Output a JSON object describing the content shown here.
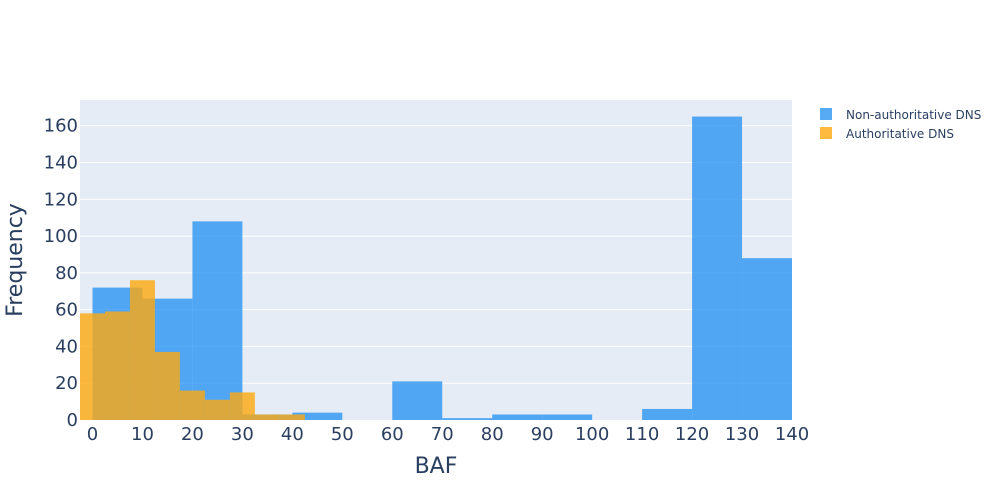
{
  "chart_data": {
    "type": "bar",
    "barmode": "overlay",
    "xlabel": "BAF",
    "ylabel": "Frequency",
    "xlim": [
      -2.5,
      140
    ],
    "ylim": [
      0,
      174
    ],
    "x_ticks": [
      0,
      10,
      20,
      30,
      40,
      50,
      60,
      70,
      80,
      90,
      100,
      110,
      120,
      130,
      140
    ],
    "y_ticks": [
      0,
      20,
      40,
      60,
      80,
      100,
      120,
      140,
      160
    ],
    "grid": true,
    "legend_position": "top-right",
    "series": [
      {
        "name": "Non-authoritative DNS",
        "color": "#1f8ff2",
        "opacity": 0.75,
        "bins": [
          {
            "x0": 0,
            "x1": 10,
            "value": 72
          },
          {
            "x0": 10,
            "x1": 20,
            "value": 66
          },
          {
            "x0": 20,
            "x1": 30,
            "value": 108
          },
          {
            "x0": 30,
            "x1": 40,
            "value": 3
          },
          {
            "x0": 40,
            "x1": 50,
            "value": 4
          },
          {
            "x0": 50,
            "x1": 60,
            "value": 0
          },
          {
            "x0": 60,
            "x1": 70,
            "value": 21
          },
          {
            "x0": 70,
            "x1": 80,
            "value": 1
          },
          {
            "x0": 80,
            "x1": 90,
            "value": 3
          },
          {
            "x0": 90,
            "x1": 100,
            "value": 3
          },
          {
            "x0": 100,
            "x1": 110,
            "value": 0
          },
          {
            "x0": 110,
            "x1": 120,
            "value": 6
          },
          {
            "x0": 120,
            "x1": 130,
            "value": 165
          },
          {
            "x0": 130,
            "x1": 140,
            "value": 88
          }
        ]
      },
      {
        "name": "Authoritative DNS",
        "color": "#fca90e",
        "opacity": 0.8,
        "bins": [
          {
            "x0": -2.5,
            "x1": 2.5,
            "value": 58
          },
          {
            "x0": 2.5,
            "x1": 7.5,
            "value": 59
          },
          {
            "x0": 7.5,
            "x1": 12.5,
            "value": 76
          },
          {
            "x0": 12.5,
            "x1": 17.5,
            "value": 37
          },
          {
            "x0": 17.5,
            "x1": 22.5,
            "value": 16
          },
          {
            "x0": 22.5,
            "x1": 27.5,
            "value": 11
          },
          {
            "x0": 27.5,
            "x1": 32.5,
            "value": 15
          },
          {
            "x0": 32.5,
            "x1": 37.5,
            "value": 3
          },
          {
            "x0": 37.5,
            "x1": 42.5,
            "value": 3
          }
        ]
      }
    ]
  }
}
